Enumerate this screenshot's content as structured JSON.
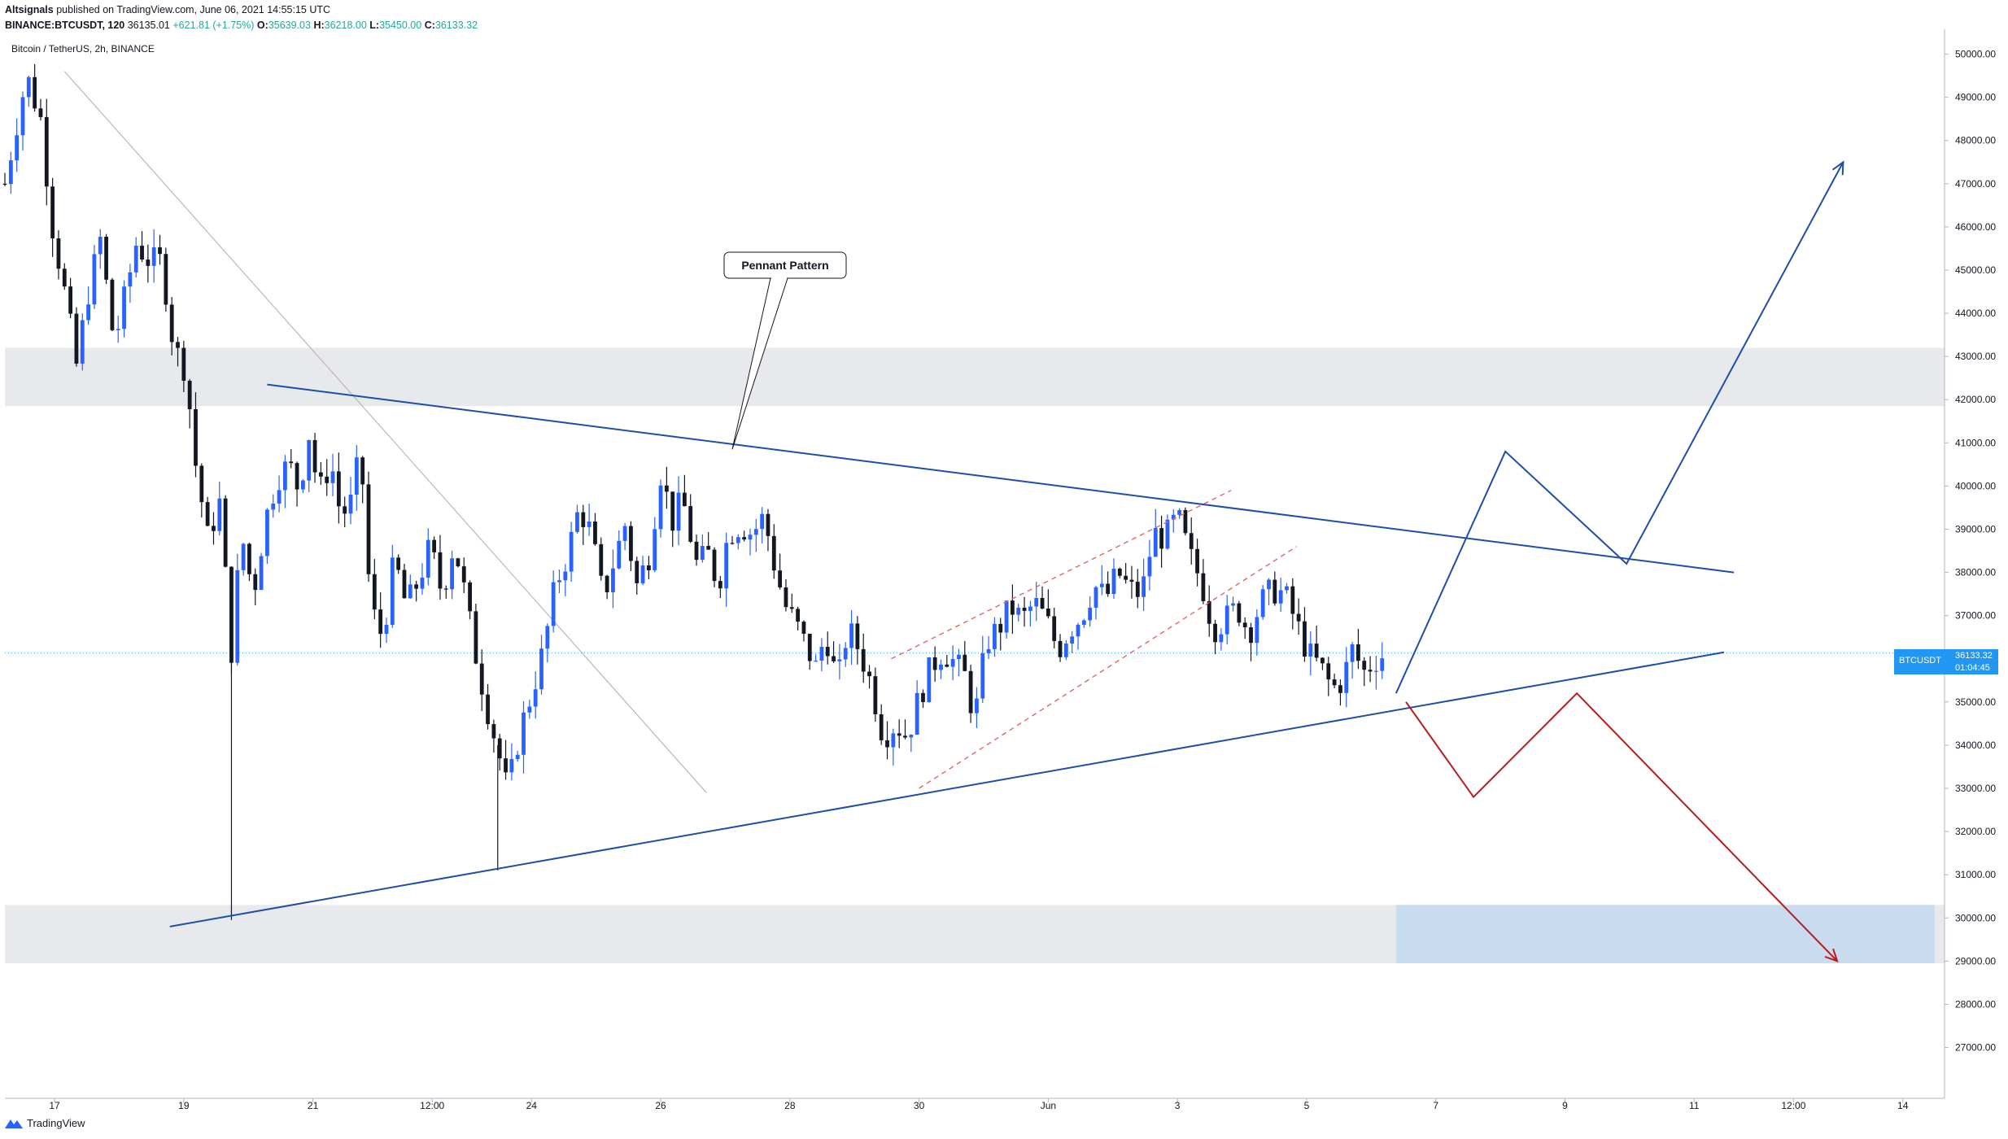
{
  "header": {
    "author": "Altsignals",
    "published": "published on TradingView.com, June 06, 2021 14:55:15 UTC",
    "symbol": "BINANCE:BTCUSDT, 120",
    "last": "36135.01",
    "change": "+621.81 (+1.75%)",
    "o_label": "O:",
    "o_val": "35639.03",
    "h_label": "H:",
    "h_val": "36218.00",
    "l_label": "L:",
    "l_val": "35450.00",
    "c_label": "C:",
    "c_val": "36133.32"
  },
  "chart_data": {
    "type": "candlestick",
    "title": "Bitcoin / TetherUS, 2h, BINANCE",
    "ylim": [
      26200,
      50500
    ],
    "y_ticks": [
      "50000.00",
      "49000.00",
      "48000.00",
      "47000.00",
      "46000.00",
      "45000.00",
      "44000.00",
      "43000.00",
      "42000.00",
      "41000.00",
      "40000.00",
      "39000.00",
      "38000.00",
      "37000.00",
      "36000.00",
      "35000.00",
      "34000.00",
      "33000.00",
      "32000.00",
      "31000.00",
      "30000.00",
      "29000.00",
      "28000.00",
      "27000.00"
    ],
    "x_ticks": [
      "17",
      "19",
      "21",
      "12:00",
      "24",
      "26",
      "28",
      "30",
      "Jun",
      "3",
      "5",
      "7",
      "9",
      "11",
      "12:00",
      "14"
    ],
    "x_tick_positions": [
      2.5,
      9,
      15.5,
      21.5,
      26.5,
      33,
      39.5,
      46,
      52.5,
      59,
      65.5,
      72,
      78.5,
      85,
      90,
      95.5
    ],
    "xlim": [
      0,
      97.6
    ],
    "price_path": [
      [
        0,
        47000
      ],
      [
        0.5,
        48200
      ],
      [
        1.1,
        49500
      ],
      [
        1.8,
        48500
      ],
      [
        2.4,
        46000
      ],
      [
        3,
        44500
      ],
      [
        3.6,
        42800
      ],
      [
        4.2,
        44500
      ],
      [
        4.8,
        45700
      ],
      [
        5.5,
        43300
      ],
      [
        6,
        44300
      ],
      [
        6.6,
        45600
      ],
      [
        7.3,
        45200
      ],
      [
        7.9,
        45200
      ],
      [
        8.5,
        43200
      ],
      [
        9.1,
        42700
      ],
      [
        9.6,
        40500
      ],
      [
        10.2,
        38800
      ],
      [
        10.8,
        39600
      ],
      [
        11.4,
        36200
      ],
      [
        11.9,
        38900
      ],
      [
        12.5,
        37500
      ],
      [
        13.1,
        39200
      ],
      [
        13.7,
        40200
      ],
      [
        14.3,
        40500
      ],
      [
        14.8,
        39900
      ],
      [
        15.3,
        41200
      ],
      [
        15.8,
        39800
      ],
      [
        16.4,
        40600
      ],
      [
        16.9,
        39300
      ],
      [
        17.4,
        39600
      ],
      [
        17.9,
        40800
      ],
      [
        18.4,
        37200
      ],
      [
        19,
        36500
      ],
      [
        19.6,
        38300
      ],
      [
        20.2,
        37200
      ],
      [
        20.8,
        37800
      ],
      [
        21.4,
        38600
      ],
      [
        22,
        37500
      ],
      [
        22.6,
        38700
      ],
      [
        23.1,
        37600
      ],
      [
        23.6,
        36300
      ],
      [
        24.2,
        35000
      ],
      [
        24.8,
        33900
      ],
      [
        25.3,
        32900
      ],
      [
        25.9,
        34300
      ],
      [
        26.5,
        35200
      ],
      [
        27.1,
        36200
      ],
      [
        27.7,
        37700
      ],
      [
        28.3,
        38400
      ],
      [
        28.9,
        39500
      ],
      [
        29.5,
        38900
      ],
      [
        30.1,
        37400
      ],
      [
        30.6,
        38200
      ],
      [
        31.2,
        39100
      ],
      [
        31.8,
        37700
      ],
      [
        32.4,
        38400
      ],
      [
        33,
        40300
      ],
      [
        33.6,
        39200
      ],
      [
        34.1,
        39700
      ],
      [
        34.8,
        38200
      ],
      [
        35.4,
        38400
      ],
      [
        35.9,
        37700
      ],
      [
        36.4,
        38900
      ],
      [
        37,
        39100
      ],
      [
        37.6,
        38900
      ],
      [
        38.2,
        39300
      ],
      [
        38.8,
        38000
      ],
      [
        39.3,
        37200
      ],
      [
        39.8,
        36800
      ],
      [
        40.3,
        36300
      ],
      [
        40.8,
        35800
      ],
      [
        41.3,
        36600
      ],
      [
        41.9,
        35400
      ],
      [
        42.4,
        36700
      ],
      [
        43,
        36200
      ],
      [
        43.6,
        35400
      ],
      [
        44.2,
        34200
      ],
      [
        44.8,
        34500
      ],
      [
        45.4,
        34200
      ],
      [
        46,
        35100
      ],
      [
        46.6,
        35800
      ],
      [
        47.2,
        36200
      ],
      [
        47.8,
        35900
      ],
      [
        48.3,
        35600
      ],
      [
        48.8,
        34600
      ],
      [
        49.4,
        36400
      ],
      [
        50,
        36700
      ],
      [
        50.6,
        37200
      ],
      [
        51.2,
        36900
      ],
      [
        51.8,
        37300
      ],
      [
        52.4,
        36900
      ],
      [
        53,
        36200
      ],
      [
        53.6,
        36700
      ],
      [
        54.2,
        37000
      ],
      [
        54.8,
        37700
      ],
      [
        55.4,
        37400
      ],
      [
        56,
        38000
      ],
      [
        56.6,
        37600
      ],
      [
        57.2,
        37500
      ],
      [
        57.8,
        38900
      ],
      [
        58.4,
        38800
      ],
      [
        59,
        39300
      ],
      [
        59.6,
        38400
      ],
      [
        60.2,
        37800
      ],
      [
        60.8,
        36700
      ],
      [
        61.4,
        36900
      ],
      [
        62,
        37200
      ],
      [
        62.6,
        36600
      ],
      [
        63.2,
        37300
      ],
      [
        63.8,
        37600
      ],
      [
        64.4,
        37500
      ],
      [
        65,
        36800
      ],
      [
        65.6,
        36100
      ],
      [
        66.2,
        35800
      ],
      [
        66.8,
        35300
      ],
      [
        67.3,
        35500
      ],
      [
        67.8,
        36200
      ],
      [
        68.4,
        35700
      ],
      [
        69,
        36000
      ],
      [
        69.5,
        36133
      ]
    ],
    "annotations": {
      "label": "Pennant Pattern",
      "resistance_line": [
        [
          13.2,
          42350
        ],
        [
          87,
          38000
        ]
      ],
      "support_line": [
        [
          8.3,
          29800
        ],
        [
          86.5,
          36150
        ]
      ],
      "descending_guide": [
        [
          3,
          49600
        ],
        [
          35.3,
          32900
        ]
      ],
      "channel_upper": [
        [
          44.6,
          36000
        ],
        [
          61.7,
          39900
        ]
      ],
      "channel_lower": [
        [
          46,
          33000
        ],
        [
          65,
          38600
        ]
      ],
      "bull_scenario": [
        [
          70,
          35200
        ],
        [
          75.5,
          40800
        ],
        [
          81.6,
          38200
        ],
        [
          92.5,
          47500
        ]
      ],
      "bear_scenario": [
        [
          70.5,
          35000
        ],
        [
          73.9,
          32800
        ],
        [
          79.1,
          35200
        ],
        [
          92.2,
          29000
        ]
      ],
      "resistance_zone": [
        41850,
        43200
      ],
      "support_zone": [
        28950,
        30300
      ],
      "target_zone": [
        [
          70,
          97.1
        ],
        [
          28950,
          30300
        ]
      ],
      "current_price": 36133.32
    }
  },
  "price_box": {
    "symbol": "BTCUSDT",
    "value": "36133.32",
    "time": "01:04:45"
  },
  "footer": {
    "brand": "TradingView"
  },
  "colors": {
    "up": "#2962ff",
    "down": "#131722",
    "pattern_line": "#1e4ea8",
    "bear_line": "#b71c1c",
    "channel": "#e06666",
    "zone": "#e8e9ec",
    "target_zone": "#c9dcef",
    "price_line": "#2196f3"
  }
}
